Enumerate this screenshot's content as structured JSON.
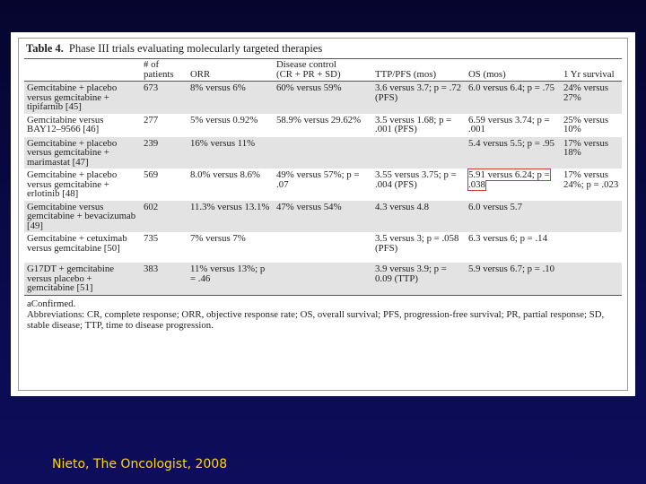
{
  "table": {
    "label": "Table 4.",
    "caption": "Phase III trials evaluating molecularly targeted therapies",
    "headers": [
      "",
      "# of\npatients",
      "ORR",
      "Disease control\n(CR + PR + SD)",
      "TTP/PFS (mos)",
      "OS (mos)",
      "1 Yr survival"
    ],
    "rows": [
      [
        "Gemcitabine + placebo versus gemcitabine + tipifarnib [45]",
        "673",
        "8% versus 6%",
        "60% versus 59%",
        "3.6 versus 3.7; p = .72 (PFS)",
        "6.0 versus 6.4; p = .75",
        "24% versus 27%"
      ],
      [
        "Gemcitabine versus BAY12–9566 [46]",
        "277",
        "5% versus 0.92%",
        "58.9% versus 29.62%",
        "3.5 versus 1.68; p = .001 (PFS)",
        "6.59 versus 3.74; p = .001",
        "25% versus 10%"
      ],
      [
        "Gemcitabine + placebo versus gemcitabine + marimastat [47]",
        "239",
        "16% versus 11%",
        "",
        "",
        "5.4 versus 5.5; p = .95",
        "17% versus 18%"
      ],
      [
        "Gemcitabine + placebo versus gemcitabine + erlotinib [48]",
        "569",
        "8.0% versus 8.6%",
        "49% versus 57%; p = .07",
        "3.55 versus 3.75; p = .004 (PFS)",
        "5.91 versus 6.24; p = .038",
        "17% versus 24%; p = .023"
      ],
      [
        "Gemcitabine versus gemcitabine + bevacizumab [49]",
        "602",
        "11.3% versus 13.1%",
        "47% versus 54%",
        "4.3 versus 4.8",
        "6.0 versus 5.7",
        ""
      ],
      [
        "Gemcitabine + cetuximab versus gemcitabine [50]",
        "735",
        "7% versus 7%",
        "",
        "3.5 versus 3; p = .058 (PFS)",
        "6.3 versus 6; p = .14",
        ""
      ],
      [
        "G17DT + gemcitabine versus placebo + gemcitabine [51]",
        "383",
        "11% versus 13%; p = .46",
        "",
        "3.9 versus 3.9; p = 0.09 (TTP)",
        "5.9 versus 6.7; p = .10",
        ""
      ]
    ],
    "footnote_confirmed": "aConfirmed.",
    "abbreviations": "Abbreviations: CR, complete response; ORR, objective response rate; OS, overall survival; PFS, progression-free survival; PR, partial response; SD, stable disease; TTP, time to disease progression."
  },
  "highlight": {
    "row": 3,
    "col": 5,
    "color": "#d43a2a"
  },
  "citation": "Nieto, The Oncologist, 2008"
}
